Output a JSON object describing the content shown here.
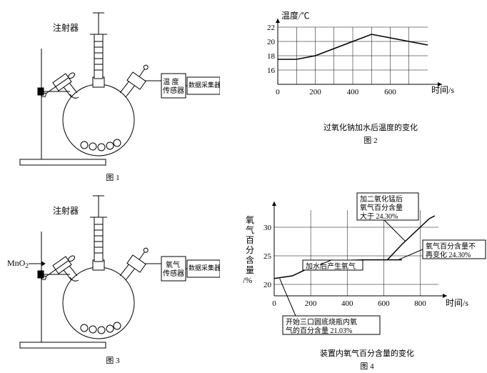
{
  "apparatus": {
    "syringe_label": "注射器",
    "temp_sensor_label": "温 度\n传感器",
    "o2_sensor_label": "氧气\n传感器",
    "collector_label": "数据采集器",
    "mno2_label": "MnO",
    "mno2_sub": "2",
    "fig1_caption": "图 1",
    "fig3_caption": "图 3"
  },
  "chart2": {
    "y_label": "温度/℃",
    "y_ticks": [
      "22",
      "20",
      "18",
      "16"
    ],
    "x_ticks": [
      "0",
      "200",
      "400",
      "600"
    ],
    "x_label": "时间/s",
    "title": "过氧化钠加水后温度的变化",
    "fig_caption": "图 2",
    "data_x": [
      0,
      100,
      200,
      300,
      400,
      500,
      600,
      700,
      800
    ],
    "data_y": [
      17.5,
      17.5,
      18,
      19,
      20,
      21,
      20.5,
      20,
      19.5
    ],
    "ylim": [
      14,
      22
    ],
    "xlim": [
      0,
      800
    ],
    "grid_color": "#000000",
    "line_color": "#000000",
    "background_color": "#ffffff"
  },
  "chart4": {
    "y_label_chars": "氧气百分含量",
    "y_unit": "/%",
    "y_ticks": [
      "30",
      "25",
      "20"
    ],
    "x_ticks": [
      "0",
      "200",
      "400",
      "600",
      "800"
    ],
    "x_label": "时间/s",
    "title": "装置内氧气百分含量的变化",
    "fig_caption": "图 4",
    "box_mno2": "加二氧化锰后\n氧气百分含量\n大于 24.30%",
    "box_stable": "氧气百分含量不\n再变化 24.30%",
    "box_water": "加水后产生氧气",
    "box_start": "开始三口圆底烧瓶内氧\n气的百分含量 21.03%",
    "data_main_x": [
      0,
      100,
      200,
      300,
      400,
      500,
      600,
      700
    ],
    "data_main_y": [
      21.03,
      21.5,
      23,
      24,
      24.2,
      24.3,
      24.3,
      24.3
    ],
    "data_branch_x": [
      620,
      700,
      800,
      850,
      880
    ],
    "data_branch_y": [
      24.3,
      27,
      30,
      31.5,
      32
    ],
    "ylim": [
      18,
      33
    ],
    "xlim": [
      0,
      900
    ],
    "grid_color": "#000000",
    "line_color": "#000000"
  }
}
